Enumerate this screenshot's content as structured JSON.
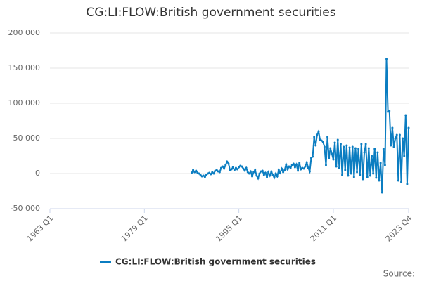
{
  "chart_data": {
    "type": "line",
    "title": "CG:LI:FLOW:British government securities",
    "source": "Source:",
    "x": [
      "1987 Q1",
      "1987 Q2",
      "1987 Q3",
      "1987 Q4",
      "1988 Q1",
      "1988 Q2",
      "1988 Q3",
      "1988 Q4",
      "1989 Q1",
      "1989 Q2",
      "1989 Q3",
      "1989 Q4",
      "1990 Q1",
      "1990 Q2",
      "1990 Q3",
      "1990 Q4",
      "1991 Q1",
      "1991 Q2",
      "1991 Q3",
      "1991 Q4",
      "1992 Q1",
      "1992 Q2",
      "1992 Q3",
      "1992 Q4",
      "1993 Q1",
      "1993 Q2",
      "1993 Q3",
      "1993 Q4",
      "1994 Q1",
      "1994 Q2",
      "1994 Q3",
      "1994 Q4",
      "1995 Q1",
      "1995 Q2",
      "1995 Q3",
      "1995 Q4",
      "1996 Q1",
      "1996 Q2",
      "1996 Q3",
      "1996 Q4",
      "1997 Q1",
      "1997 Q2",
      "1997 Q3",
      "1997 Q4",
      "1998 Q1",
      "1998 Q2",
      "1998 Q3",
      "1998 Q4",
      "1999 Q1",
      "1999 Q2",
      "1999 Q3",
      "1999 Q4",
      "2000 Q1",
      "2000 Q2",
      "2000 Q3",
      "2000 Q4",
      "2001 Q1",
      "2001 Q2",
      "2001 Q3",
      "2001 Q4",
      "2002 Q1",
      "2002 Q2",
      "2002 Q3",
      "2002 Q4",
      "2003 Q1",
      "2003 Q2",
      "2003 Q3",
      "2003 Q4",
      "2004 Q1",
      "2004 Q2",
      "2004 Q3",
      "2004 Q4",
      "2005 Q1",
      "2005 Q2",
      "2005 Q3",
      "2005 Q4",
      "2006 Q1",
      "2006 Q2",
      "2006 Q3",
      "2006 Q4",
      "2007 Q1",
      "2007 Q2",
      "2007 Q3",
      "2007 Q4",
      "2008 Q1",
      "2008 Q2",
      "2008 Q3",
      "2008 Q4",
      "2009 Q1",
      "2009 Q2",
      "2009 Q3",
      "2009 Q4",
      "2010 Q1",
      "2010 Q2",
      "2010 Q3",
      "2010 Q4",
      "2011 Q1",
      "2011 Q2",
      "2011 Q3",
      "2011 Q4",
      "2012 Q1",
      "2012 Q2",
      "2012 Q3",
      "2012 Q4",
      "2013 Q1",
      "2013 Q2",
      "2013 Q3",
      "2013 Q4",
      "2014 Q1",
      "2014 Q2",
      "2014 Q3",
      "2014 Q4",
      "2015 Q1",
      "2015 Q2",
      "2015 Q3",
      "2015 Q4",
      "2016 Q1",
      "2016 Q2",
      "2016 Q3",
      "2016 Q4",
      "2017 Q1",
      "2017 Q2",
      "2017 Q3",
      "2017 Q4",
      "2018 Q1",
      "2018 Q2",
      "2018 Q3",
      "2018 Q4",
      "2019 Q1",
      "2019 Q2",
      "2019 Q3",
      "2019 Q4",
      "2020 Q1",
      "2020 Q2",
      "2020 Q3",
      "2020 Q4",
      "2021 Q1",
      "2021 Q2",
      "2021 Q3",
      "2021 Q4",
      "2022 Q1",
      "2022 Q2",
      "2022 Q3",
      "2022 Q4",
      "2023 Q1",
      "2023 Q2",
      "2023 Q3",
      "2023 Q4"
    ],
    "series": [
      {
        "name": "CG:LI:FLOW:British government securities",
        "color": "#0b7dc1",
        "values": [
          1000,
          5000,
          2000,
          4000,
          1000,
          0,
          -2000,
          -4000,
          -3000,
          -5000,
          -2000,
          0,
          1000,
          -1000,
          2000,
          0,
          4000,
          5000,
          3000,
          2000,
          8000,
          10000,
          7000,
          12000,
          17000,
          14000,
          5000,
          6000,
          9000,
          5000,
          8000,
          6000,
          9000,
          11000,
          10000,
          7000,
          4000,
          8000,
          2000,
          0,
          3000,
          -4000,
          2000,
          5000,
          -3000,
          -7000,
          0,
          3000,
          4000,
          -2000,
          1000,
          -5000,
          2000,
          -3000,
          3000,
          -2000,
          -6000,
          0,
          -4000,
          5000,
          1000,
          7000,
          2000,
          5000,
          13000,
          6000,
          10000,
          8000,
          12000,
          14000,
          9000,
          13000,
          4000,
          15000,
          6000,
          8000,
          7000,
          10000,
          16000,
          8000,
          3000,
          22000,
          24000,
          52000,
          40000,
          55000,
          60000,
          48000,
          47000,
          45000,
          38000,
          12000,
          52000,
          22000,
          36000,
          28000,
          20000,
          44000,
          10000,
          48000,
          8000,
          42000,
          -2000,
          38000,
          5000,
          40000,
          -3000,
          37000,
          0,
          38000,
          -5000,
          36000,
          2000,
          35000,
          -2000,
          42000,
          -8000,
          30000,
          42000,
          -5000,
          36000,
          -3000,
          25000,
          0,
          35000,
          -6000,
          30000,
          -10000,
          15000,
          -27000,
          35000,
          12000,
          163000,
          88000,
          89000,
          40000,
          65000,
          38000,
          50000,
          55000,
          -10000,
          55000,
          -12000,
          50000,
          25000,
          83000,
          -15000,
          65000
        ]
      }
    ],
    "xlim": [
      "1963 Q1",
      "2023 Q4"
    ],
    "xticks": [
      "1963 Q1",
      "1979 Q1",
      "1995 Q1",
      "2011 Q1",
      "2023 Q4"
    ],
    "ylim": [
      -50000,
      200000
    ],
    "yticks": [
      {
        "value": -50000,
        "label": "-50 000"
      },
      0,
      {
        "value": 50000,
        "label": "50 000"
      },
      {
        "value": 100000,
        "label": "100 000"
      },
      {
        "value": 150000,
        "label": "150 000"
      },
      {
        "value": 200000,
        "label": "200 000"
      }
    ],
    "grid": true
  }
}
